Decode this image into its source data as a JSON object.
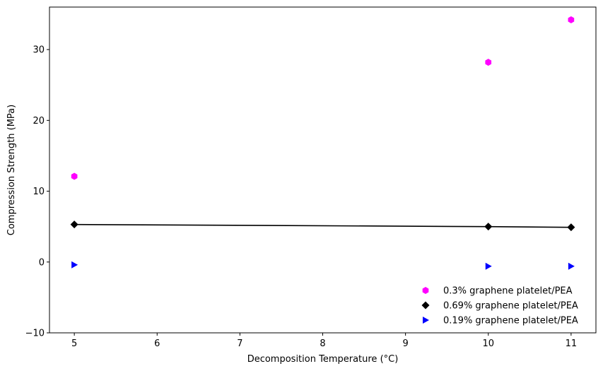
{
  "chart_data": {
    "type": "scatter",
    "title": "",
    "xlabel": "Decomposition Temperature (°C)",
    "ylabel": "Compression Strength (MPa)",
    "xlim": [
      4.7,
      11.3
    ],
    "ylim": [
      -10,
      36
    ],
    "xticks": [
      5,
      6,
      7,
      8,
      9,
      10,
      11
    ],
    "yticks": [
      -10,
      0,
      10,
      20,
      30
    ],
    "grid": false,
    "legend_position": "lower-right",
    "series": [
      {
        "name": "0.3% graphene platelet/PEA",
        "color": "#ff00ff",
        "marker": "hexagon",
        "line": false,
        "x": [
          5,
          10,
          11
        ],
        "y": [
          12.1,
          28.2,
          34.2
        ]
      },
      {
        "name": "0.69% graphene platelet/PEA",
        "color": "#000000",
        "marker": "diamond",
        "line": true,
        "x": [
          5,
          10,
          11
        ],
        "y": [
          5.3,
          5.0,
          4.9
        ]
      },
      {
        "name": "0.19% graphene platelet/PEA",
        "color": "#0000ff",
        "marker": "triangle-right",
        "line": false,
        "x": [
          5,
          10,
          11
        ],
        "y": [
          -0.4,
          -0.6,
          -0.6
        ]
      }
    ]
  }
}
